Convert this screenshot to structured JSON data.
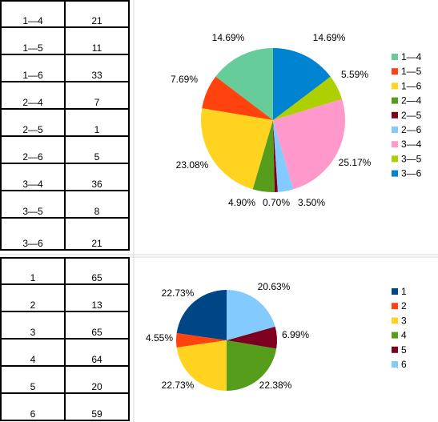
{
  "table1": {
    "rows": [
      {
        "key": "1—4",
        "val": "21"
      },
      {
        "key": "1—5",
        "val": "11"
      },
      {
        "key": "1—6",
        "val": "33"
      },
      {
        "key": "2—4",
        "val": "7"
      },
      {
        "key": "2—5",
        "val": "1"
      },
      {
        "key": "2—6",
        "val": "5"
      },
      {
        "key": "3—4",
        "val": "36"
      },
      {
        "key": "3—5",
        "val": "8"
      },
      {
        "key": "3—6",
        "val": "21"
      }
    ]
  },
  "table2": {
    "rows": [
      {
        "key": "1",
        "val": "65"
      },
      {
        "key": "2",
        "val": "13"
      },
      {
        "key": "3",
        "val": "65"
      },
      {
        "key": "4",
        "val": "64"
      },
      {
        "key": "5",
        "val": "20"
      },
      {
        "key": "6",
        "val": "59"
      }
    ]
  },
  "chart_data": [
    {
      "type": "pie",
      "categories": [
        "1—4",
        "1—5",
        "1—6",
        "2—4",
        "2—5",
        "2—6",
        "3—4",
        "3—5",
        "3—6"
      ],
      "values": [
        21,
        11,
        33,
        7,
        1,
        5,
        36,
        8,
        21
      ],
      "percent_labels": [
        "14.69%",
        "7.69%",
        "23.08%",
        "4.90%",
        "0.70%",
        "3.50%",
        "25.17%",
        "5.59%",
        "14.69%"
      ],
      "colors": [
        "#66cc99",
        "#ff420e",
        "#ffd320",
        "#579d1c",
        "#7e0021",
        "#83caff",
        "#ff99cc",
        "#aecf00",
        "#0084d1"
      ],
      "legend": "right"
    },
    {
      "type": "pie",
      "categories": [
        "1",
        "2",
        "3",
        "4",
        "5",
        "6"
      ],
      "values": [
        65,
        13,
        65,
        64,
        20,
        59
      ],
      "percent_labels": [
        "22.73%",
        "4.55%",
        "22.73%",
        "22.38%",
        "6.99%",
        "20.63%"
      ],
      "colors": [
        "#004586",
        "#ff420e",
        "#ffd320",
        "#579d1c",
        "#7e0021",
        "#83caff"
      ],
      "legend": "right"
    }
  ]
}
